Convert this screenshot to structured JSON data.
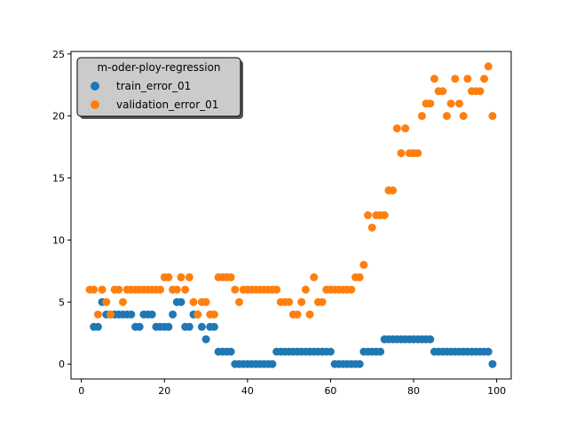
{
  "chart_data": {
    "type": "scatter",
    "title": "",
    "xlabel": "",
    "ylabel": "",
    "xlim": [
      -2.5,
      103.5
    ],
    "ylim": [
      -1.2,
      25.2
    ],
    "xticks": [
      0,
      20,
      40,
      60,
      80,
      100
    ],
    "yticks": [
      0,
      5,
      10,
      15,
      20,
      25
    ],
    "grid": false,
    "legend": {
      "title": "m-oder-ploy-regression",
      "placement": "top-left"
    },
    "series": [
      {
        "name": "train_error_01",
        "color": "#1f77b4",
        "x": [
          3,
          4,
          5,
          6,
          7,
          8,
          9,
          10,
          11,
          12,
          13,
          14,
          15,
          16,
          17,
          18,
          19,
          20,
          21,
          22,
          23,
          24,
          25,
          26,
          27,
          28,
          29,
          30,
          31,
          32,
          33,
          34,
          35,
          36,
          37,
          38,
          39,
          40,
          41,
          42,
          43,
          44,
          45,
          46,
          47,
          48,
          49,
          50,
          51,
          52,
          53,
          54,
          55,
          56,
          57,
          58,
          59,
          60,
          61,
          62,
          63,
          64,
          65,
          66,
          67,
          68,
          69,
          70,
          71,
          72,
          73,
          74,
          75,
          76,
          77,
          78,
          79,
          80,
          81,
          82,
          83,
          84,
          85,
          86,
          87,
          88,
          89,
          90,
          91,
          92,
          93,
          94,
          95,
          96,
          97,
          98,
          99
        ],
        "y": [
          3,
          3,
          5,
          4,
          4,
          4,
          4,
          4,
          4,
          4,
          3,
          3,
          4,
          4,
          4,
          3,
          3,
          3,
          3,
          4,
          5,
          5,
          3,
          3,
          4,
          4,
          3,
          2,
          3,
          3,
          1,
          1,
          1,
          1,
          0,
          0,
          0,
          0,
          0,
          0,
          0,
          0,
          0,
          0,
          1,
          1,
          1,
          1,
          1,
          1,
          1,
          1,
          1,
          1,
          1,
          1,
          1,
          1,
          0,
          0,
          0,
          0,
          0,
          0,
          0,
          1,
          1,
          1,
          1,
          1,
          2,
          2,
          2,
          2,
          2,
          2,
          2,
          2,
          2,
          2,
          2,
          2,
          1,
          1,
          1,
          1,
          1,
          1,
          1,
          1,
          1,
          1,
          1,
          1,
          1,
          1,
          0
        ]
      },
      {
        "name": "validation_error_01",
        "color": "#ff7f0e",
        "x": [
          2,
          3,
          4,
          5,
          6,
          7,
          8,
          9,
          10,
          11,
          12,
          13,
          14,
          15,
          16,
          17,
          18,
          19,
          20,
          21,
          22,
          23,
          24,
          25,
          26,
          27,
          28,
          29,
          30,
          31,
          32,
          33,
          34,
          35,
          36,
          37,
          38,
          39,
          40,
          41,
          42,
          43,
          44,
          45,
          46,
          47,
          48,
          49,
          50,
          51,
          52,
          53,
          54,
          55,
          56,
          57,
          58,
          59,
          60,
          61,
          62,
          63,
          64,
          65,
          66,
          67,
          68,
          69,
          70,
          71,
          72,
          73,
          74,
          75,
          76,
          77,
          78,
          79,
          80,
          81,
          82,
          83,
          84,
          85,
          86,
          87,
          88,
          89,
          90,
          91,
          92,
          93,
          94,
          95,
          96,
          97,
          98,
          99
        ],
        "y": [
          6,
          6,
          4,
          6,
          5,
          4,
          6,
          6,
          5,
          6,
          6,
          6,
          6,
          6,
          6,
          6,
          6,
          6,
          7,
          7,
          6,
          6,
          7,
          6,
          7,
          5,
          4,
          5,
          5,
          4,
          4,
          7,
          7,
          7,
          7,
          6,
          5,
          6,
          6,
          6,
          6,
          6,
          6,
          6,
          6,
          6,
          5,
          5,
          5,
          4,
          4,
          5,
          6,
          4,
          7,
          5,
          5,
          6,
          6,
          6,
          6,
          6,
          6,
          6,
          7,
          7,
          8,
          12,
          11,
          12,
          12,
          12,
          14,
          14,
          19,
          17,
          19,
          17,
          17,
          17,
          20,
          21,
          21,
          23,
          22,
          22,
          20,
          21,
          23,
          21,
          20,
          23,
          22,
          22,
          22,
          23,
          24,
          20
        ]
      }
    ]
  }
}
